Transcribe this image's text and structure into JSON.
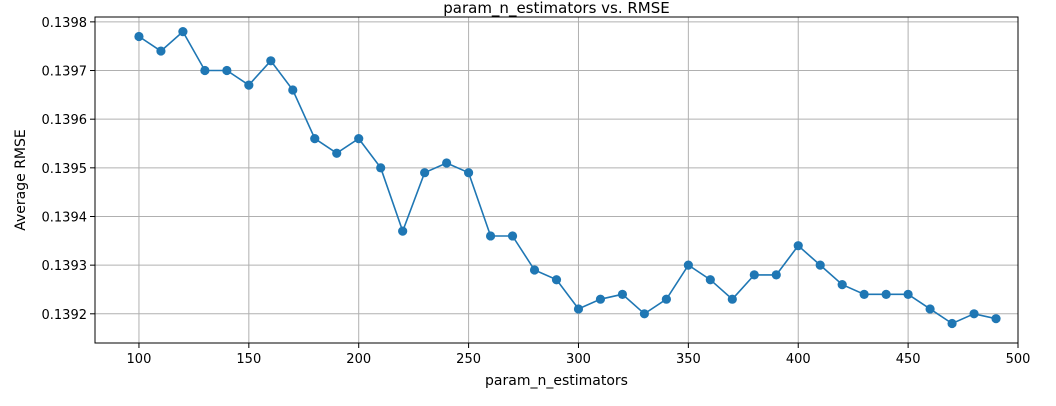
{
  "chart_data": {
    "type": "line",
    "title": "param_n_estimators vs. RMSE",
    "xlabel": "param_n_estimators",
    "ylabel": "Average RMSE",
    "xlim": [
      80,
      500
    ],
    "ylim": [
      0.13914,
      0.13981
    ],
    "xticks": [
      100,
      150,
      200,
      250,
      300,
      350,
      400,
      450,
      500
    ],
    "yticks": [
      0.1392,
      0.1393,
      0.1394,
      0.1395,
      0.1396,
      0.1397,
      0.1398
    ],
    "grid": true,
    "series_color": "#1f77b4",
    "x": [
      100,
      110,
      120,
      130,
      140,
      150,
      160,
      170,
      180,
      190,
      200,
      210,
      220,
      230,
      240,
      250,
      260,
      270,
      280,
      290,
      300,
      310,
      320,
      330,
      340,
      350,
      360,
      370,
      380,
      390,
      400,
      410,
      420,
      430,
      440,
      450,
      460,
      470,
      480,
      490
    ],
    "y": [
      0.13977,
      0.13974,
      0.13978,
      0.1397,
      0.1397,
      0.13967,
      0.13972,
      0.13966,
      0.13956,
      0.13953,
      0.13956,
      0.1395,
      0.13937,
      0.13949,
      0.13951,
      0.13949,
      0.13936,
      0.13936,
      0.13929,
      0.13927,
      0.13921,
      0.13923,
      0.13924,
      0.1392,
      0.13923,
      0.1393,
      0.13927,
      0.13923,
      0.13928,
      0.13928,
      0.13934,
      0.1393,
      0.13926,
      0.13924,
      0.13924,
      0.13924,
      0.13921,
      0.13918,
      0.1392,
      0.13919
    ]
  }
}
